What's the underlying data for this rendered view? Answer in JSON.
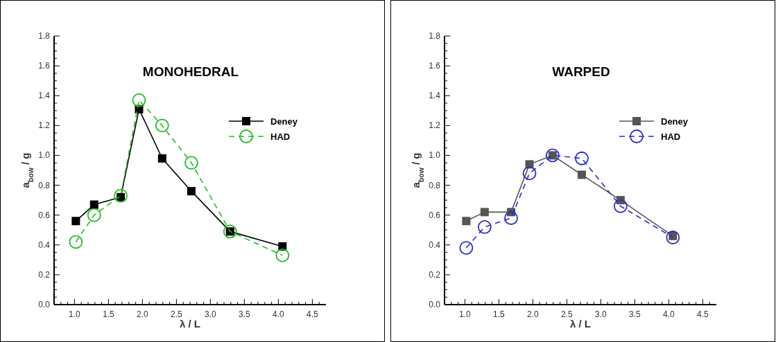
{
  "chart_data": [
    {
      "type": "line",
      "title": "MONOHEDRAL",
      "xlabel": "λ / L",
      "ylabel": "a$_{bow}$ / g",
      "legend": "top right",
      "xlim": [
        0.7,
        4.7
      ],
      "ylim": [
        0,
        1.8
      ],
      "xticks": [
        {
          "value": 0.7,
          "label": null
        },
        {
          "value": 0.8,
          "label": null
        },
        {
          "value": 0.9,
          "label": null
        },
        {
          "value": 1,
          "label": "1.0"
        },
        {
          "value": 1.1,
          "label": null
        },
        {
          "value": 1.2,
          "label": null
        },
        {
          "value": 1.3,
          "label": null
        },
        {
          "value": 1.4,
          "label": null
        },
        1.5,
        {
          "value": 1.6,
          "label": null
        },
        {
          "value": 1.7,
          "label": null
        },
        {
          "value": 1.8,
          "label": null
        },
        {
          "value": 1.9,
          "label": null
        },
        {
          "value": 2,
          "label": "2.0"
        },
        {
          "value": 2.1,
          "label": null
        },
        {
          "value": 2.2,
          "label": null
        },
        {
          "value": 2.3,
          "label": null
        },
        {
          "value": 2.4,
          "label": null
        },
        2.5,
        {
          "value": 2.6,
          "label": null
        },
        {
          "value": 2.7,
          "label": null
        },
        {
          "value": 2.8,
          "label": null
        },
        {
          "value": 2.9,
          "label": null
        },
        {
          "value": 3,
          "label": "3.0"
        },
        {
          "value": 3.1,
          "label": null
        },
        {
          "value": 3.2,
          "label": null
        },
        {
          "value": 3.3,
          "label": null
        },
        {
          "value": 3.4,
          "label": null
        },
        3.5,
        {
          "value": 3.6,
          "label": null
        },
        {
          "value": 3.7,
          "label": null
        },
        {
          "value": 3.8,
          "label": null
        },
        {
          "value": 3.9,
          "label": null
        },
        {
          "value": 4,
          "label": "4.0"
        },
        {
          "value": 4.1,
          "label": null
        },
        {
          "value": 4.2,
          "label": null
        },
        {
          "value": 4.3,
          "label": null
        },
        {
          "value": 4.4,
          "label": null
        },
        4.5,
        {
          "value": 4.6,
          "label": null
        }
      ],
      "yticks": [
        {
          "value": 0,
          "label": "0.0"
        },
        {
          "value": 0.05,
          "label": null
        },
        {
          "value": 0.1,
          "label": null
        },
        {
          "value": 0.15,
          "label": null
        },
        0.2,
        {
          "value": 0.25,
          "label": null
        },
        {
          "value": 0.3,
          "label": null
        },
        {
          "value": 0.35,
          "label": null
        },
        0.4,
        {
          "value": 0.45,
          "label": null
        },
        {
          "value": 0.5,
          "label": null
        },
        {
          "value": 0.55,
          "label": null
        },
        0.6,
        {
          "value": 0.65,
          "label": null
        },
        {
          "value": 0.7,
          "label": null
        },
        {
          "value": 0.75,
          "label": null
        },
        0.8,
        {
          "value": 0.85,
          "label": null
        },
        {
          "value": 0.9,
          "label": null
        },
        {
          "value": 0.95,
          "label": null
        },
        {
          "value": 1,
          "label": "1.0"
        },
        {
          "value": 1.05,
          "label": null
        },
        {
          "value": 1.1,
          "label": null
        },
        {
          "value": 1.15,
          "label": null
        },
        1.2,
        {
          "value": 1.25,
          "label": null
        },
        {
          "value": 1.3,
          "label": null
        },
        {
          "value": 1.35,
          "label": null
        },
        1.4,
        {
          "value": 1.45,
          "label": null
        },
        {
          "value": 1.5,
          "label": null
        },
        {
          "value": 1.55,
          "label": null
        },
        1.6,
        {
          "value": 1.65,
          "label": null
        },
        {
          "value": 1.7,
          "label": null
        },
        {
          "value": 1.75,
          "label": null
        },
        1.8
      ],
      "series": [
        {
          "name": "Deney",
          "color": "#000000",
          "marker": "square",
          "line_style": "solid",
          "x": [
            1.02,
            1.29,
            1.68,
            1.95,
            2.29,
            2.72,
            3.29,
            4.06
          ],
          "values": [
            0.56,
            0.67,
            0.72,
            1.31,
            0.98,
            0.76,
            0.49,
            0.39
          ]
        },
        {
          "name": "HAD",
          "color": "#22bb22",
          "marker": "circle",
          "line_style": "dashed",
          "x": [
            1.02,
            1.29,
            1.68,
            1.95,
            2.29,
            2.72,
            3.29,
            4.06
          ],
          "values": [
            0.42,
            0.6,
            0.73,
            1.37,
            1.2,
            0.95,
            0.49,
            0.33
          ]
        }
      ]
    },
    {
      "type": "line",
      "title": "WARPED",
      "xlabel": "λ / L",
      "ylabel": "a$_{bow}$ / g",
      "legend": "top right",
      "xlim": [
        0.7,
        4.7
      ],
      "ylim": [
        0,
        1.8
      ],
      "xticks": [
        {
          "value": 0.7,
          "label": null
        },
        {
          "value": 0.8,
          "label": null
        },
        {
          "value": 0.9,
          "label": null
        },
        {
          "value": 1,
          "label": "1.0"
        },
        {
          "value": 1.1,
          "label": null
        },
        {
          "value": 1.2,
          "label": null
        },
        {
          "value": 1.3,
          "label": null
        },
        {
          "value": 1.4,
          "label": null
        },
        1.5,
        {
          "value": 1.6,
          "label": null
        },
        {
          "value": 1.7,
          "label": null
        },
        {
          "value": 1.8,
          "label": null
        },
        {
          "value": 1.9,
          "label": null
        },
        {
          "value": 2,
          "label": "2.0"
        },
        {
          "value": 2.1,
          "label": null
        },
        {
          "value": 2.2,
          "label": null
        },
        {
          "value": 2.3,
          "label": null
        },
        {
          "value": 2.4,
          "label": null
        },
        2.5,
        {
          "value": 2.6,
          "label": null
        },
        {
          "value": 2.7,
          "label": null
        },
        {
          "value": 2.8,
          "label": null
        },
        {
          "value": 2.9,
          "label": null
        },
        {
          "value": 3,
          "label": "3.0"
        },
        {
          "value": 3.1,
          "label": null
        },
        {
          "value": 3.2,
          "label": null
        },
        {
          "value": 3.3,
          "label": null
        },
        {
          "value": 3.4,
          "label": null
        },
        3.5,
        {
          "value": 3.6,
          "label": null
        },
        {
          "value": 3.7,
          "label": null
        },
        {
          "value": 3.8,
          "label": null
        },
        {
          "value": 3.9,
          "label": null
        },
        {
          "value": 4,
          "label": "4.0"
        },
        {
          "value": 4.1,
          "label": null
        },
        {
          "value": 4.2,
          "label": null
        },
        {
          "value": 4.3,
          "label": null
        },
        {
          "value": 4.4,
          "label": null
        },
        4.5,
        {
          "value": 4.6,
          "label": null
        }
      ],
      "yticks": [
        {
          "value": 0,
          "label": "0.0"
        },
        {
          "value": 0.05,
          "label": null
        },
        {
          "value": 0.1,
          "label": null
        },
        {
          "value": 0.15,
          "label": null
        },
        0.2,
        {
          "value": 0.25,
          "label": null
        },
        {
          "value": 0.3,
          "label": null
        },
        {
          "value": 0.35,
          "label": null
        },
        0.4,
        {
          "value": 0.45,
          "label": null
        },
        {
          "value": 0.5,
          "label": null
        },
        {
          "value": 0.55,
          "label": null
        },
        0.6,
        {
          "value": 0.65,
          "label": null
        },
        {
          "value": 0.7,
          "label": null
        },
        {
          "value": 0.75,
          "label": null
        },
        0.8,
        {
          "value": 0.85,
          "label": null
        },
        {
          "value": 0.9,
          "label": null
        },
        {
          "value": 0.95,
          "label": null
        },
        {
          "value": 1,
          "label": "1.0"
        },
        {
          "value": 1.05,
          "label": null
        },
        {
          "value": 1.1,
          "label": null
        },
        {
          "value": 1.15,
          "label": null
        },
        1.2,
        {
          "value": 1.25,
          "label": null
        },
        {
          "value": 1.3,
          "label": null
        },
        {
          "value": 1.35,
          "label": null
        },
        1.4,
        {
          "value": 1.45,
          "label": null
        },
        {
          "value": 1.5,
          "label": null
        },
        {
          "value": 1.55,
          "label": null
        },
        1.6,
        {
          "value": 1.65,
          "label": null
        },
        {
          "value": 1.7,
          "label": null
        },
        {
          "value": 1.75,
          "label": null
        },
        1.8
      ],
      "series": [
        {
          "name": "Deney",
          "color": "#555555",
          "marker": "square",
          "line_style": "solid",
          "x": [
            1.02,
            1.29,
            1.68,
            1.95,
            2.29,
            2.72,
            3.29,
            4.06
          ],
          "values": [
            0.56,
            0.62,
            0.62,
            0.94,
            1.0,
            0.87,
            0.7,
            0.46
          ]
        },
        {
          "name": "HAD",
          "color": "#2b2bcc",
          "marker": "circle",
          "line_style": "dashed",
          "x": [
            1.02,
            1.29,
            1.68,
            1.95,
            2.29,
            2.72,
            3.29,
            4.06
          ],
          "values": [
            0.38,
            0.52,
            0.58,
            0.88,
            1.0,
            0.98,
            0.66,
            0.45
          ]
        }
      ]
    }
  ]
}
